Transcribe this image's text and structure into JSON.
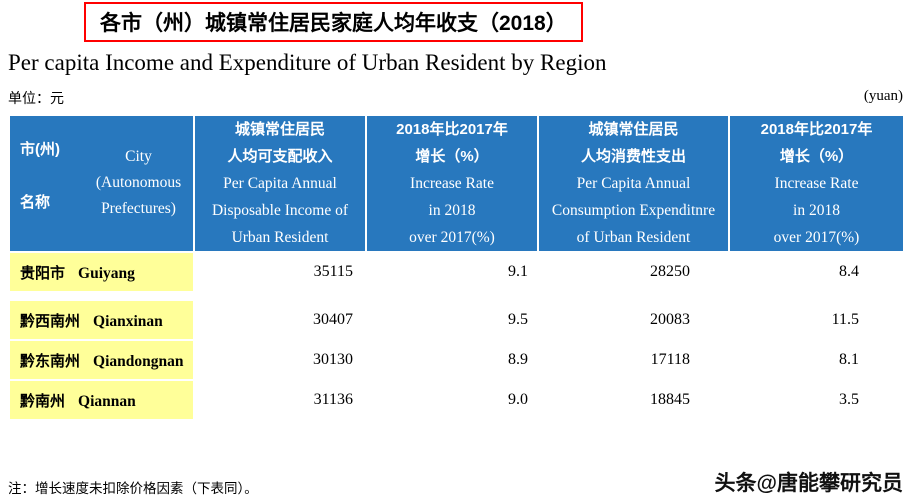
{
  "title": {
    "cn": "各市（州）城镇常住居民家庭人均年收支（2018）",
    "en": "Per capita Income and Expenditure of Urban Resident by Region"
  },
  "unit": {
    "left": "单位：元",
    "right": "(yuan)"
  },
  "note": "注：增长速度未扣除价格因素（下表同）。",
  "watermark": "头条@唐能攀研究员",
  "colors": {
    "header_bg": "#2878BE",
    "label_bg": "#FFFF99",
    "title_border": "#FF0000",
    "header_text": "#FFFFFF"
  },
  "header": {
    "col1": {
      "cn1": "市(州)",
      "cn2": "名称",
      "en1": "City",
      "en2": "(Autonomous",
      "en3": "Prefectures)"
    },
    "col2": {
      "cn1": "城镇常住居民",
      "cn2": "人均可支配收入",
      "en1": "Per Capita Annual",
      "en2": "Disposable Income of",
      "en3": "Urban Resident"
    },
    "col3": {
      "cn1": "2018年比2017年",
      "cn2": "增长（%）",
      "en1": "Increase Rate",
      "en2": "in 2018",
      "en3": "over 2017(%)"
    },
    "col4": {
      "cn1": "城镇常住居民",
      "cn2": "人均消费性支出",
      "en1": "Per Capita Annual",
      "en2": "Consumption Expenditnre",
      "en3": "of Urban Resident"
    },
    "col5": {
      "cn1": "2018年比2017年",
      "cn2": "增长（%）",
      "en1": "Increase Rate",
      "en2": "in 2018",
      "en3": "over 2017(%)"
    }
  },
  "rows": [
    {
      "city_cn": "贵阳市",
      "city_en": "Guiyang",
      "v1": "35115",
      "v2": "9.1",
      "v3": "28250",
      "v4": "8.4"
    },
    {
      "city_cn": "黔西南州",
      "city_en": "Qianxinan",
      "v1": "30407",
      "v2": "9.5",
      "v3": "20083",
      "v4": "11.5"
    },
    {
      "city_cn": "黔东南州",
      "city_en": "Qiandongnan",
      "v1": "30130",
      "v2": "8.9",
      "v3": "17118",
      "v4": "8.1"
    },
    {
      "city_cn": "黔南州",
      "city_en": "Qiannan",
      "v1": "31136",
      "v2": "9.0",
      "v3": "18845",
      "v4": "3.5"
    }
  ],
  "chart_data": {
    "type": "table",
    "title": "各市（州）城镇常住居民家庭人均年收支（2018）",
    "subtitle": "Per capita Income and Expenditure of Urban Resident by Region",
    "unit": "元 (yuan)",
    "columns": [
      "市(州)名称 City (Autonomous Prefectures)",
      "城镇常住居民人均可支配收入 Per Capita Annual Disposable Income of Urban Resident",
      "2018年比2017年增长（%） Increase Rate in 2018 over 2017(%)",
      "城镇常住居民人均消费性支出 Per Capita Annual Consumption Expenditnre of Urban Resident",
      "2018年比2017年增长（%） Increase Rate in 2018 over 2017(%)"
    ],
    "rows": [
      [
        "贵阳市 Guiyang",
        35115,
        9.1,
        28250,
        8.4
      ],
      [
        "黔西南州 Qianxinan",
        30407,
        9.5,
        20083,
        11.5
      ],
      [
        "黔东南州 Qiandongnan",
        30130,
        8.9,
        17118,
        8.1
      ],
      [
        "黔南州 Qiannan",
        31136,
        9.0,
        18845,
        3.5
      ]
    ],
    "note": "注：增长速度未扣除价格因素（下表同）。"
  }
}
